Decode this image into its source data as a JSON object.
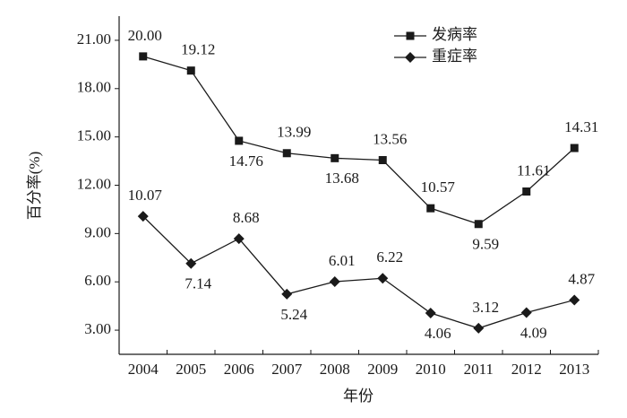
{
  "chart_data": {
    "type": "line",
    "x_label": "年份",
    "y_label": "百分率(%)",
    "categories": [
      "2004",
      "2005",
      "2006",
      "2007",
      "2008",
      "2009",
      "2010",
      "2011",
      "2012",
      "2013"
    ],
    "series": [
      {
        "name": "发病率",
        "color": "#1a1a1a",
        "marker": "square",
        "values": [
          20.0,
          19.12,
          14.76,
          13.99,
          13.68,
          13.56,
          10.57,
          9.59,
          11.61,
          14.31
        ],
        "value_labels": [
          "20.00",
          "19.12",
          "14.76",
          "13.99",
          "13.68",
          "13.56",
          "10.57",
          "9.59",
          "11.61",
          "14.31"
        ]
      },
      {
        "name": "重症率",
        "color": "#1a1a1a",
        "marker": "diamond",
        "values": [
          10.07,
          7.14,
          8.68,
          5.24,
          6.01,
          6.22,
          4.06,
          3.12,
          4.09,
          4.87
        ],
        "value_labels": [
          "10.07",
          "7.14",
          "8.68",
          "5.24",
          "6.01",
          "6.22",
          "4.06",
          "3.12",
          "4.09",
          "4.87"
        ]
      }
    ],
    "ylim": [
      1.5,
      22.5
    ],
    "yticks": [
      {
        "value": 3,
        "label": "3.00"
      },
      {
        "value": 6,
        "label": "6.00"
      },
      {
        "value": 9,
        "label": "9.00"
      },
      {
        "value": 12,
        "label": "12.00"
      },
      {
        "value": 15,
        "label": "15.00"
      },
      {
        "value": 18,
        "label": "18.00"
      },
      {
        "value": 21,
        "label": "21.00"
      }
    ],
    "grid": false,
    "legend": "top-right"
  }
}
